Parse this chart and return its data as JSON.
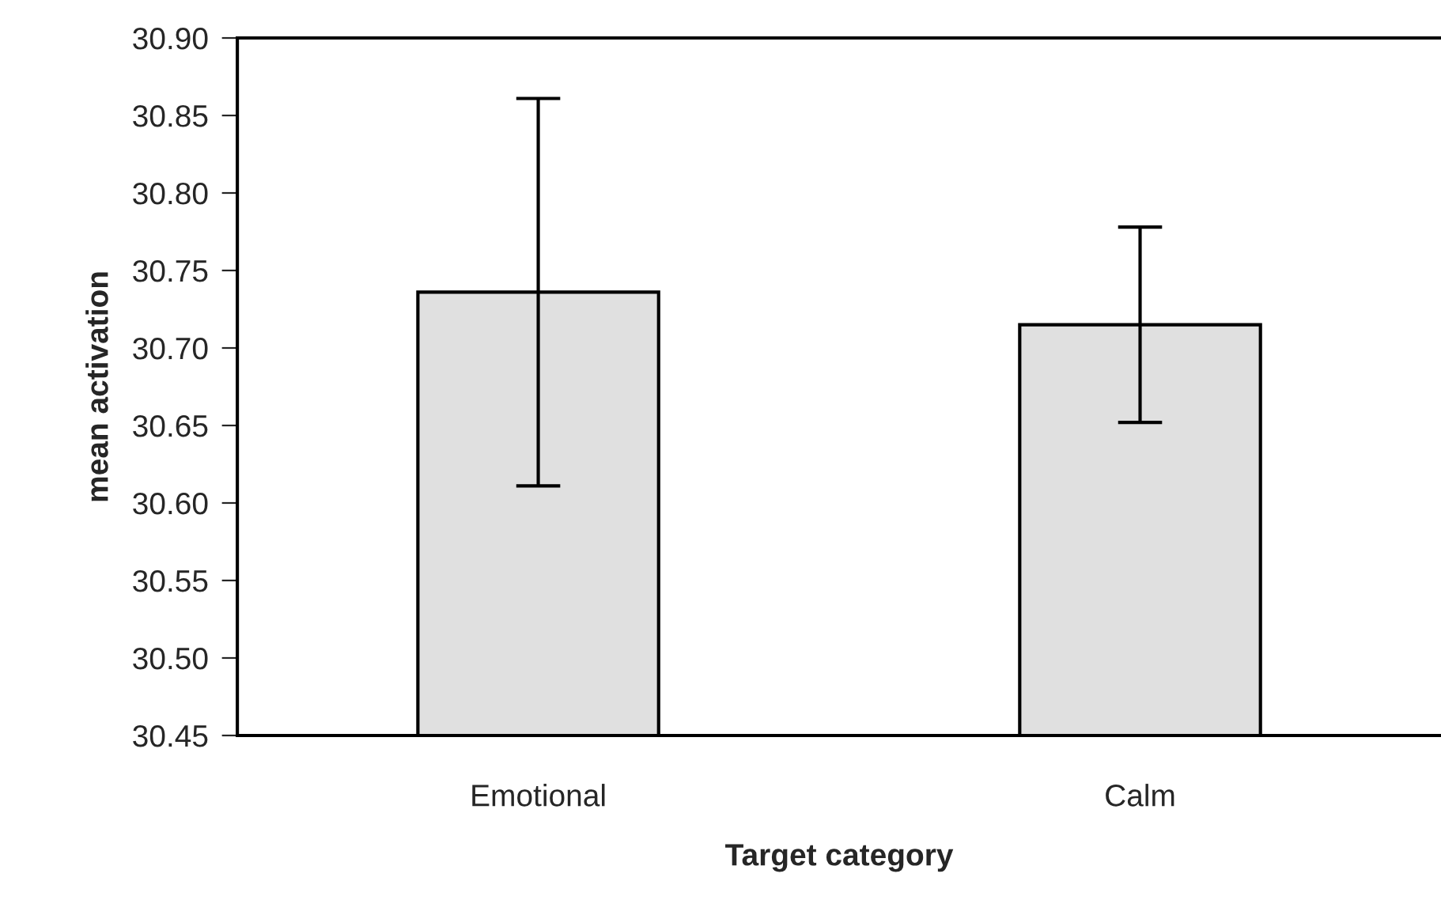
{
  "chart_data": {
    "type": "bar",
    "xlabel": "Target category",
    "ylabel": "mean activation",
    "categories": [
      "Emotional",
      "Calm"
    ],
    "values": [
      30.736,
      30.715
    ],
    "errors": [
      0.125,
      0.063
    ],
    "color": "#e0e0e0",
    "ylim": [
      30.45,
      30.9
    ],
    "yticks": [
      {
        "value": 30.45,
        "label": "30.45"
      },
      {
        "value": 30.5,
        "label": "30.50"
      },
      {
        "value": 30.55,
        "label": "30.55"
      },
      {
        "value": 30.6,
        "label": "30.60"
      },
      {
        "value": 30.65,
        "label": "30.65"
      },
      {
        "value": 30.7,
        "label": "30.70"
      },
      {
        "value": 30.75,
        "label": "30.75"
      },
      {
        "value": 30.8,
        "label": "30.80"
      },
      {
        "value": 30.85,
        "label": "30.85"
      },
      {
        "value": 30.9,
        "label": "30.90"
      }
    ],
    "grid": false,
    "legend": false
  }
}
